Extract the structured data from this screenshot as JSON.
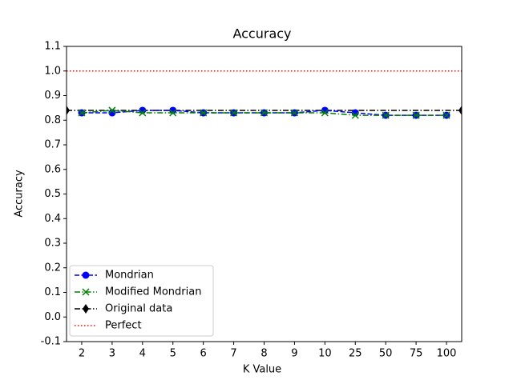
{
  "chart_data": {
    "type": "line",
    "title": "Accuracy",
    "xlabel": "K Value",
    "ylabel": "Accuracy",
    "categories": [
      "2",
      "3",
      "4",
      "5",
      "6",
      "7",
      "8",
      "9",
      "10",
      "25",
      "50",
      "75",
      "100"
    ],
    "series": [
      {
        "name": "Mondrian",
        "color": "#0000ff",
        "marker": "circle",
        "linestyle": "dashed",
        "values": [
          0.83,
          0.83,
          0.84,
          0.84,
          0.83,
          0.83,
          0.83,
          0.83,
          0.84,
          0.83,
          0.82,
          0.82,
          0.82
        ]
      },
      {
        "name": "Modified Mondrian",
        "color": "#008000",
        "marker": "x",
        "linestyle": "dashdot",
        "values": [
          0.83,
          0.84,
          0.83,
          0.83,
          0.83,
          0.83,
          0.83,
          0.83,
          0.83,
          0.82,
          0.82,
          0.82,
          0.82
        ]
      }
    ],
    "reference_lines": [
      {
        "name": "Original data",
        "value": 0.84,
        "color": "#000000",
        "marker": "diamond",
        "linestyle": "dashdot"
      },
      {
        "name": "Perfect",
        "value": 1.0,
        "color": "#ff0000",
        "linestyle": "dotted"
      }
    ],
    "ylim": [
      -0.1,
      1.1
    ],
    "yticks": [
      -0.1,
      {
        "value": 0.0,
        "label": "0.0"
      },
      0.1,
      0.2,
      0.3,
      0.4,
      0.5,
      0.6,
      0.7,
      0.8,
      0.9,
      {
        "value": 1.0,
        "label": "1.0"
      },
      1.1
    ],
    "legend": "lower left"
  }
}
